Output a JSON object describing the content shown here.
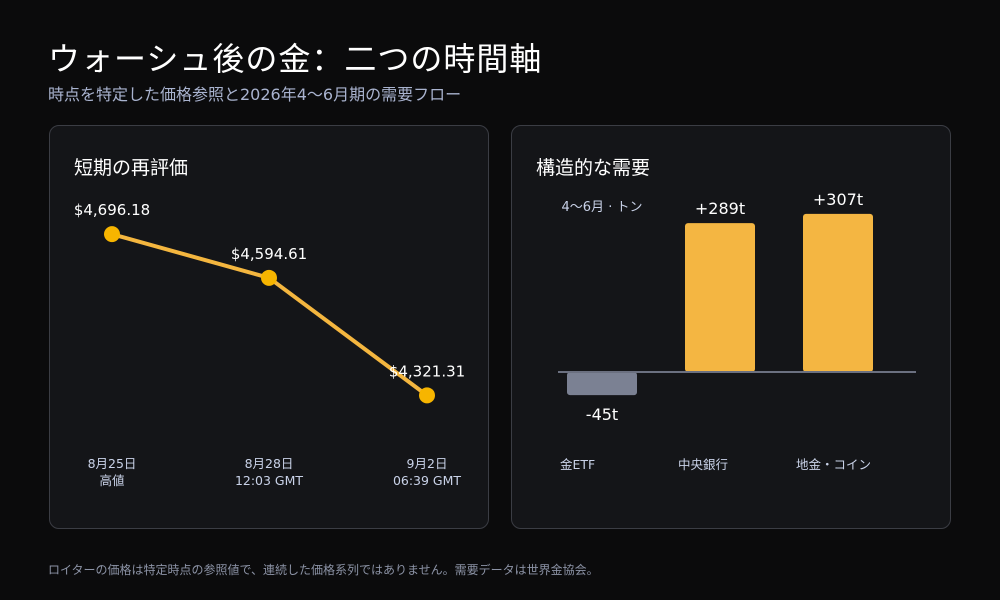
{
  "title": "ウォーシュ後の金：二つの時間軸",
  "subtitle": "時点を特定した価格参照と2026年4〜6月期の需要フロー",
  "footer": "ロイターの価格は特定時点の参照値で、連続した価格系列ではありません。需要データは世界金協会。",
  "colors": {
    "background": "#0b0b0c",
    "panel": "#141518",
    "line": "#f4b63f",
    "point": "#f7b500",
    "positive_bar": "#f4b642",
    "negative_bar": "#7b8193",
    "baseline": "#6b7080",
    "tick_text": "#c9d2e8"
  },
  "chart_data": [
    {
      "type": "line",
      "title": "短期の再評価",
      "x": [
        "8月25日 高値",
        "8月28日 12:03 GMT",
        "9月2日 06:39 GMT"
      ],
      "x_tick_lines": [
        [
          "8月25日",
          "高値"
        ],
        [
          "8月28日",
          "12:03 GMT"
        ],
        [
          "9月2日",
          "06:39 GMT"
        ]
      ],
      "series": [
        {
          "values": [
            4696.18,
            4594.61,
            4321.31
          ]
        }
      ],
      "data_labels": [
        "$4,696.18",
        "$4,594.61",
        "$4,321.31"
      ],
      "ylim": [
        4250,
        4750
      ],
      "grid": false
    },
    {
      "type": "bar",
      "title": "構造的な需要",
      "unit_label": "4〜6月 · トン",
      "categories": [
        "金ETF",
        "中央銀行",
        "地金・コイン"
      ],
      "values": [
        -45,
        289,
        307
      ],
      "data_labels": [
        "-45t",
        "+289t",
        "+307t"
      ],
      "ylim": [
        -60,
        330
      ],
      "grid": false
    }
  ]
}
